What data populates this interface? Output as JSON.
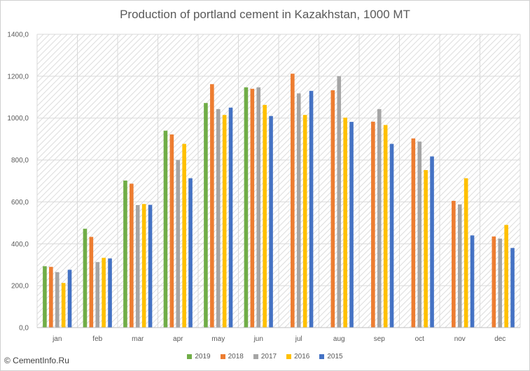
{
  "chart_data": {
    "type": "bar",
    "title": "Production of portland cement in Kazakhstan, 1000 MT",
    "categories": [
      "jan",
      "feb",
      "mar",
      "apr",
      "may",
      "jun",
      "jul",
      "aug",
      "sep",
      "oct",
      "nov",
      "dec"
    ],
    "ylim": [
      0,
      1400
    ],
    "yticks": [
      "0,0",
      "200,0",
      "400,0",
      "600,0",
      "800,0",
      "1000,0",
      "1200,0",
      "1400,0"
    ],
    "grid": true,
    "legend_position": "bottom",
    "series": [
      {
        "name": "2019",
        "color": "#70ad47",
        "values": [
          293,
          472,
          702,
          940,
          1072,
          1147,
          null,
          null,
          null,
          null,
          null,
          null
        ]
      },
      {
        "name": "2018",
        "color": "#ed7d31",
        "values": [
          290,
          433,
          687,
          922,
          1162,
          1140,
          1212,
          1133,
          983,
          903,
          605,
          435
        ]
      },
      {
        "name": "2017",
        "color": "#a5a5a5",
        "values": [
          265,
          313,
          585,
          800,
          1043,
          1147,
          1118,
          1200,
          1043,
          888,
          588,
          425
        ]
      },
      {
        "name": "2016",
        "color": "#ffc000",
        "values": [
          213,
          333,
          590,
          877,
          1015,
          1063,
          1015,
          1002,
          967,
          752,
          713,
          490
        ]
      },
      {
        "name": "2015",
        "color": "#4472c4",
        "values": [
          276,
          330,
          586,
          713,
          1050,
          1010,
          1130,
          982,
          877,
          817,
          440,
          380
        ]
      }
    ]
  },
  "source_label": "© CementInfo.Ru"
}
